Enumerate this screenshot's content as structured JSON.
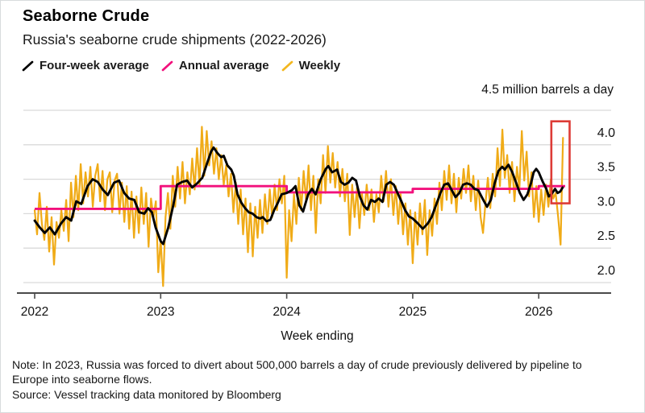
{
  "header": {
    "title": "Seaborne Crude",
    "subtitle": "Russia's seaborne crude shipments (2022-2026)"
  },
  "legend": {
    "items": [
      {
        "label": "Four-week average",
        "color": "#000000"
      },
      {
        "label": "Annual average",
        "color": "#f2117c"
      },
      {
        "label": "Weekly",
        "color": "#f3b71f"
      }
    ]
  },
  "footer": {
    "note": "Note: In 2023, Russia was forced to divert about 500,000 barrels a day of crude previously delivered by pipeline to Europe into seaborne flows.",
    "source": "Source: Vessel tracking data monitored by Bloomberg"
  },
  "chart_data": {
    "type": "line",
    "title": "Seaborne Crude",
    "subtitle": "Russia's seaborne crude shipments (2022-2026)",
    "unit_label": "4.5 million barrels a day",
    "xlabel": "Week ending",
    "ylabel": "million barrels a day",
    "grid": "horizontal",
    "legend_position": "top-left",
    "colors": {
      "weekly": "#f0ab17",
      "four_week": "#000000",
      "annual": "#f2117c",
      "gridline": "#d9d9d9",
      "axis": "#4a4a4a",
      "highlight_box": "#dd3b36"
    },
    "x_axis": {
      "label": "Week ending",
      "ticks": [
        2022,
        2023,
        2024,
        2025,
        2026
      ],
      "range": [
        2021.91,
        2026.55
      ]
    },
    "y_axis": {
      "gridlines": [
        4.5,
        4.0,
        3.5,
        3.0,
        2.5,
        2.0
      ],
      "ticks": [
        {
          "value": 4.0,
          "label": "4.0"
        },
        {
          "value": 3.5,
          "label": "3.5"
        },
        {
          "value": 3.0,
          "label": "3.0"
        },
        {
          "value": 2.5,
          "label": "2.5"
        },
        {
          "value": 2.0,
          "label": "2.0"
        }
      ],
      "top_label": "4.5 million barrels a day",
      "range": [
        1.85,
        4.5
      ]
    },
    "annotation_box": {
      "purpose": "highlights latest weekly spike",
      "t_from": 2026.1,
      "t_to": 2026.245,
      "v_top": 4.34,
      "v_bottom": 3.15
    },
    "series": {
      "annual": {
        "name": "Annual average",
        "style": "step",
        "segments": [
          {
            "label": "2022",
            "value": 3.07,
            "from": 2022.0,
            "to": 2023.0
          },
          {
            "label": "2023",
            "value": 3.4,
            "from": 2023.0,
            "to": 2024.0
          },
          {
            "label": "2024",
            "value": 3.31,
            "from": 2024.0,
            "to": 2025.0
          },
          {
            "label": "2025",
            "value": 3.36,
            "from": 2025.0,
            "to": 2026.0
          },
          {
            "label": "2026",
            "value": 3.4,
            "from": 2026.0,
            "to": 2026.21
          }
        ]
      },
      "four_week": {
        "name": "Four-week average",
        "points": [
          [
            2022.0,
            2.9
          ],
          [
            2022.04,
            2.8
          ],
          [
            2022.08,
            2.72
          ],
          [
            2022.12,
            2.8
          ],
          [
            2022.16,
            2.7
          ],
          [
            2022.21,
            2.86
          ],
          [
            2022.25,
            2.95
          ],
          [
            2022.29,
            2.9
          ],
          [
            2022.33,
            3.18
          ],
          [
            2022.37,
            3.14
          ],
          [
            2022.42,
            3.4
          ],
          [
            2022.46,
            3.5
          ],
          [
            2022.5,
            3.46
          ],
          [
            2022.54,
            3.35
          ],
          [
            2022.58,
            3.27
          ],
          [
            2022.63,
            3.45
          ],
          [
            2022.67,
            3.48
          ],
          [
            2022.71,
            3.3
          ],
          [
            2022.75,
            3.22
          ],
          [
            2022.79,
            3.2
          ],
          [
            2022.83,
            3.02
          ],
          [
            2022.87,
            3.0
          ],
          [
            2022.9,
            3.08
          ],
          [
            2022.93,
            3.02
          ],
          [
            2022.96,
            2.8
          ],
          [
            2023.0,
            2.6
          ],
          [
            2023.02,
            2.56
          ],
          [
            2023.06,
            2.8
          ],
          [
            2023.1,
            3.12
          ],
          [
            2023.13,
            3.42
          ],
          [
            2023.17,
            3.46
          ],
          [
            2023.21,
            3.48
          ],
          [
            2023.25,
            3.38
          ],
          [
            2023.29,
            3.44
          ],
          [
            2023.33,
            3.52
          ],
          [
            2023.37,
            3.74
          ],
          [
            2023.4,
            3.9
          ],
          [
            2023.42,
            3.96
          ],
          [
            2023.45,
            3.88
          ],
          [
            2023.48,
            3.82
          ],
          [
            2023.5,
            3.84
          ],
          [
            2023.53,
            3.7
          ],
          [
            2023.56,
            3.64
          ],
          [
            2023.58,
            3.55
          ],
          [
            2023.61,
            3.28
          ],
          [
            2023.64,
            3.16
          ],
          [
            2023.67,
            3.08
          ],
          [
            2023.7,
            3.02
          ],
          [
            2023.73,
            3.0
          ],
          [
            2023.76,
            2.95
          ],
          [
            2023.79,
            2.93
          ],
          [
            2023.81,
            2.95
          ],
          [
            2023.84,
            2.89
          ],
          [
            2023.87,
            2.91
          ],
          [
            2023.9,
            3.05
          ],
          [
            2023.93,
            3.16
          ],
          [
            2023.96,
            3.28
          ],
          [
            2024.0,
            3.3
          ],
          [
            2024.04,
            3.34
          ],
          [
            2024.07,
            3.4
          ],
          [
            2024.1,
            3.12
          ],
          [
            2024.13,
            3.03
          ],
          [
            2024.17,
            3.28
          ],
          [
            2024.2,
            3.36
          ],
          [
            2024.23,
            3.28
          ],
          [
            2024.27,
            3.5
          ],
          [
            2024.31,
            3.65
          ],
          [
            2024.33,
            3.69
          ],
          [
            2024.36,
            3.6
          ],
          [
            2024.4,
            3.64
          ],
          [
            2024.43,
            3.46
          ],
          [
            2024.46,
            3.42
          ],
          [
            2024.49,
            3.45
          ],
          [
            2024.52,
            3.52
          ],
          [
            2024.55,
            3.48
          ],
          [
            2024.58,
            3.25
          ],
          [
            2024.61,
            3.12
          ],
          [
            2024.64,
            3.06
          ],
          [
            2024.67,
            3.2
          ],
          [
            2024.7,
            3.17
          ],
          [
            2024.73,
            3.22
          ],
          [
            2024.76,
            3.17
          ],
          [
            2024.79,
            3.42
          ],
          [
            2024.82,
            3.46
          ],
          [
            2024.85,
            3.42
          ],
          [
            2024.88,
            3.3
          ],
          [
            2024.91,
            3.18
          ],
          [
            2024.94,
            3.05
          ],
          [
            2024.97,
            2.96
          ],
          [
            2025.0,
            2.93
          ],
          [
            2025.04,
            2.86
          ],
          [
            2025.08,
            2.78
          ],
          [
            2025.12,
            2.86
          ],
          [
            2025.15,
            2.95
          ],
          [
            2025.19,
            3.15
          ],
          [
            2025.22,
            3.3
          ],
          [
            2025.25,
            3.42
          ],
          [
            2025.28,
            3.44
          ],
          [
            2025.31,
            3.34
          ],
          [
            2025.34,
            3.24
          ],
          [
            2025.37,
            3.3
          ],
          [
            2025.4,
            3.42
          ],
          [
            2025.43,
            3.44
          ],
          [
            2025.46,
            3.42
          ],
          [
            2025.49,
            3.36
          ],
          [
            2025.52,
            3.34
          ],
          [
            2025.56,
            3.2
          ],
          [
            2025.59,
            3.1
          ],
          [
            2025.62,
            3.2
          ],
          [
            2025.65,
            3.44
          ],
          [
            2025.68,
            3.62
          ],
          [
            2025.71,
            3.68
          ],
          [
            2025.73,
            3.64
          ],
          [
            2025.76,
            3.71
          ],
          [
            2025.79,
            3.6
          ],
          [
            2025.82,
            3.45
          ],
          [
            2025.85,
            3.3
          ],
          [
            2025.88,
            3.2
          ],
          [
            2025.91,
            3.28
          ],
          [
            2025.94,
            3.45
          ],
          [
            2025.96,
            3.6
          ],
          [
            2025.98,
            3.65
          ],
          [
            2026.0,
            3.6
          ],
          [
            2026.03,
            3.47
          ],
          [
            2026.06,
            3.36
          ],
          [
            2026.08,
            3.25
          ],
          [
            2026.1,
            3.28
          ],
          [
            2026.13,
            3.36
          ],
          [
            2026.15,
            3.3
          ],
          [
            2026.17,
            3.32
          ],
          [
            2026.19,
            3.38
          ]
        ]
      },
      "weekly": {
        "name": "Weekly",
        "t_start": 2022.0,
        "t_step": 0.019231,
        "values": [
          3.05,
          2.7,
          3.3,
          2.85,
          2.62,
          3.1,
          2.45,
          2.95,
          2.26,
          2.88,
          2.65,
          3.05,
          2.75,
          3.2,
          2.6,
          3.45,
          2.95,
          3.55,
          3.05,
          3.72,
          3.15,
          3.6,
          3.25,
          3.68,
          3.1,
          3.55,
          3.72,
          3.18,
          3.62,
          3.05,
          3.5,
          3.6,
          3.02,
          3.48,
          3.58,
          3.0,
          3.45,
          2.88,
          3.4,
          2.78,
          3.32,
          2.65,
          3.25,
          2.72,
          3.38,
          2.85,
          3.3,
          2.52,
          3.22,
          2.95,
          3.18,
          2.15,
          2.62,
          1.95,
          2.95,
          3.3,
          2.78,
          3.55,
          3.1,
          3.68,
          3.22,
          3.75,
          3.15,
          3.6,
          3.28,
          3.8,
          3.35,
          3.95,
          3.42,
          4.26,
          3.55,
          4.2,
          3.7,
          4.05,
          3.58,
          3.95,
          3.5,
          3.85,
          3.42,
          3.7,
          3.25,
          3.58,
          3.02,
          3.45,
          2.85,
          3.35,
          2.7,
          3.22,
          2.44,
          3.15,
          2.38,
          3.1,
          2.65,
          3.2,
          2.72,
          3.28,
          2.85,
          3.35,
          2.95,
          3.42,
          3.05,
          3.5,
          3.15,
          3.55,
          2.07,
          3.05,
          2.6,
          3.28,
          2.85,
          3.52,
          3.05,
          3.62,
          3.18,
          3.7,
          3.05,
          3.55,
          2.72,
          3.5,
          3.15,
          3.85,
          3.3,
          3.98,
          3.45,
          3.88,
          3.38,
          3.75,
          3.25,
          3.65,
          3.18,
          3.58,
          2.69,
          3.42,
          2.95,
          3.38,
          2.79,
          3.3,
          2.98,
          3.42,
          3.05,
          3.35,
          2.88,
          3.28,
          3.02,
          3.55,
          3.18,
          3.62,
          3.1,
          3.5,
          2.98,
          3.4,
          2.85,
          3.28,
          2.7,
          3.15,
          2.55,
          3.05,
          2.28,
          3.02,
          2.55,
          3.15,
          2.7,
          3.2,
          2.4,
          3.05,
          2.68,
          3.22,
          2.85,
          3.45,
          3.05,
          3.62,
          3.2,
          3.7,
          3.15,
          3.58,
          3.02,
          3.52,
          3.22,
          3.65,
          3.3,
          3.7,
          3.18,
          3.55,
          3.05,
          3.48,
          2.95,
          2.72,
          3.15,
          3.52,
          3.08,
          3.58,
          3.25,
          3.95,
          3.4,
          4.22,
          3.52,
          3.85,
          3.3,
          3.75,
          3.18,
          3.68,
          3.35,
          4.2,
          3.48,
          3.9,
          3.25,
          3.6,
          2.95,
          3.4,
          2.88,
          3.35,
          2.98,
          3.42,
          3.1,
          3.5,
          3.22,
          3.3,
          2.95,
          2.55,
          4.1
        ]
      }
    }
  }
}
